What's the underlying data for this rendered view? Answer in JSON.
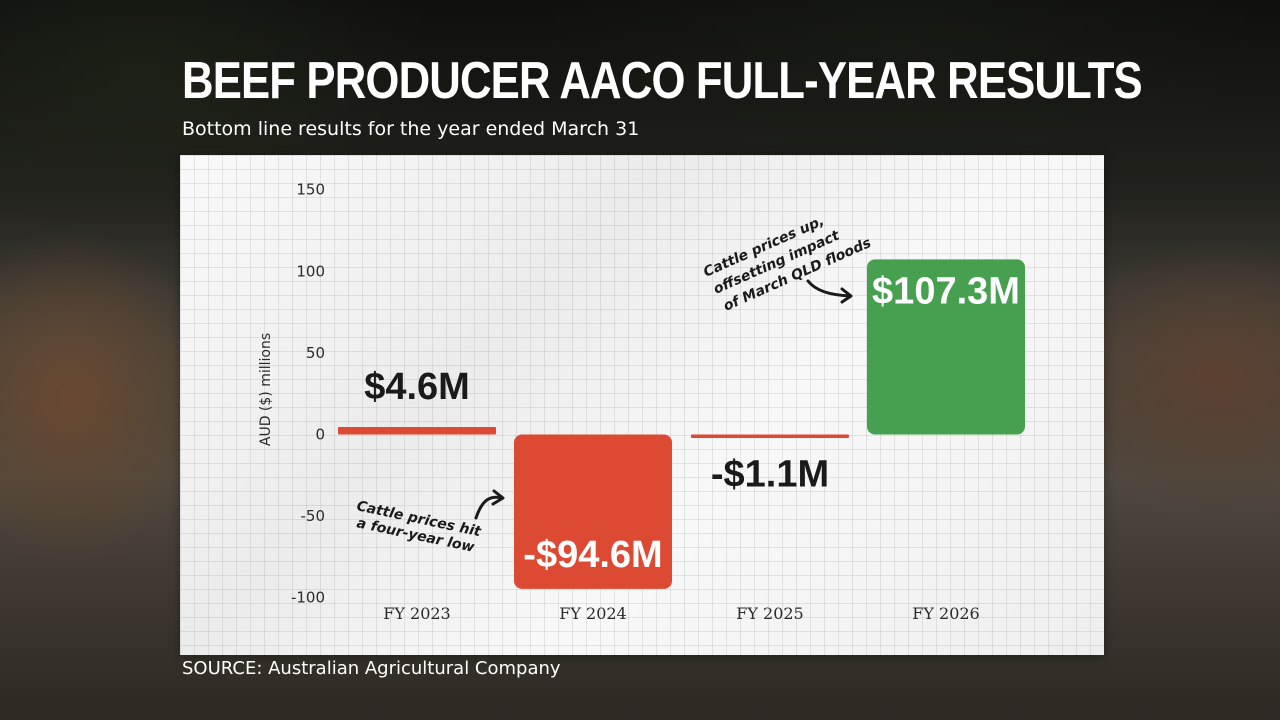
{
  "header": {
    "title": "BEEF PRODUCER AACO FULL-YEAR RESULTS",
    "subtitle": "Bottom line results for the year ended March 31"
  },
  "footer": {
    "source": "SOURCE: Australian Agricultural Company"
  },
  "colors": {
    "positive": "#47a04f",
    "negative": "#dc4a33",
    "text": "#1a1a1a",
    "white": "#ffffff"
  },
  "chart_data": {
    "type": "bar",
    "title": "BEEF PRODUCER AACO FULL-YEAR RESULTS",
    "subtitle": "Bottom line results for the year ended March 31",
    "ylabel": "AUD ($) millions",
    "xlabel": "",
    "categories": [
      "FY 2023",
      "FY 2024",
      "FY 2025",
      "FY 2026"
    ],
    "values": [
      4.6,
      -94.6,
      -1.1,
      107.3
    ],
    "value_labels": [
      "$4.6M",
      "-$94.6M",
      "-$1.1M",
      "$107.3M"
    ],
    "yticks": [
      150,
      100,
      50,
      0,
      -50,
      -100
    ],
    "ylim": [
      -100,
      150
    ],
    "grid": true,
    "legend": "none",
    "annotations": [
      {
        "target": "FY 2024",
        "lines": [
          "Cattle prices hit",
          "a four-year low"
        ]
      },
      {
        "target": "FY 2026",
        "lines": [
          "Cattle prices up,",
          "offsetting impact",
          "of March QLD floods"
        ]
      }
    ]
  }
}
